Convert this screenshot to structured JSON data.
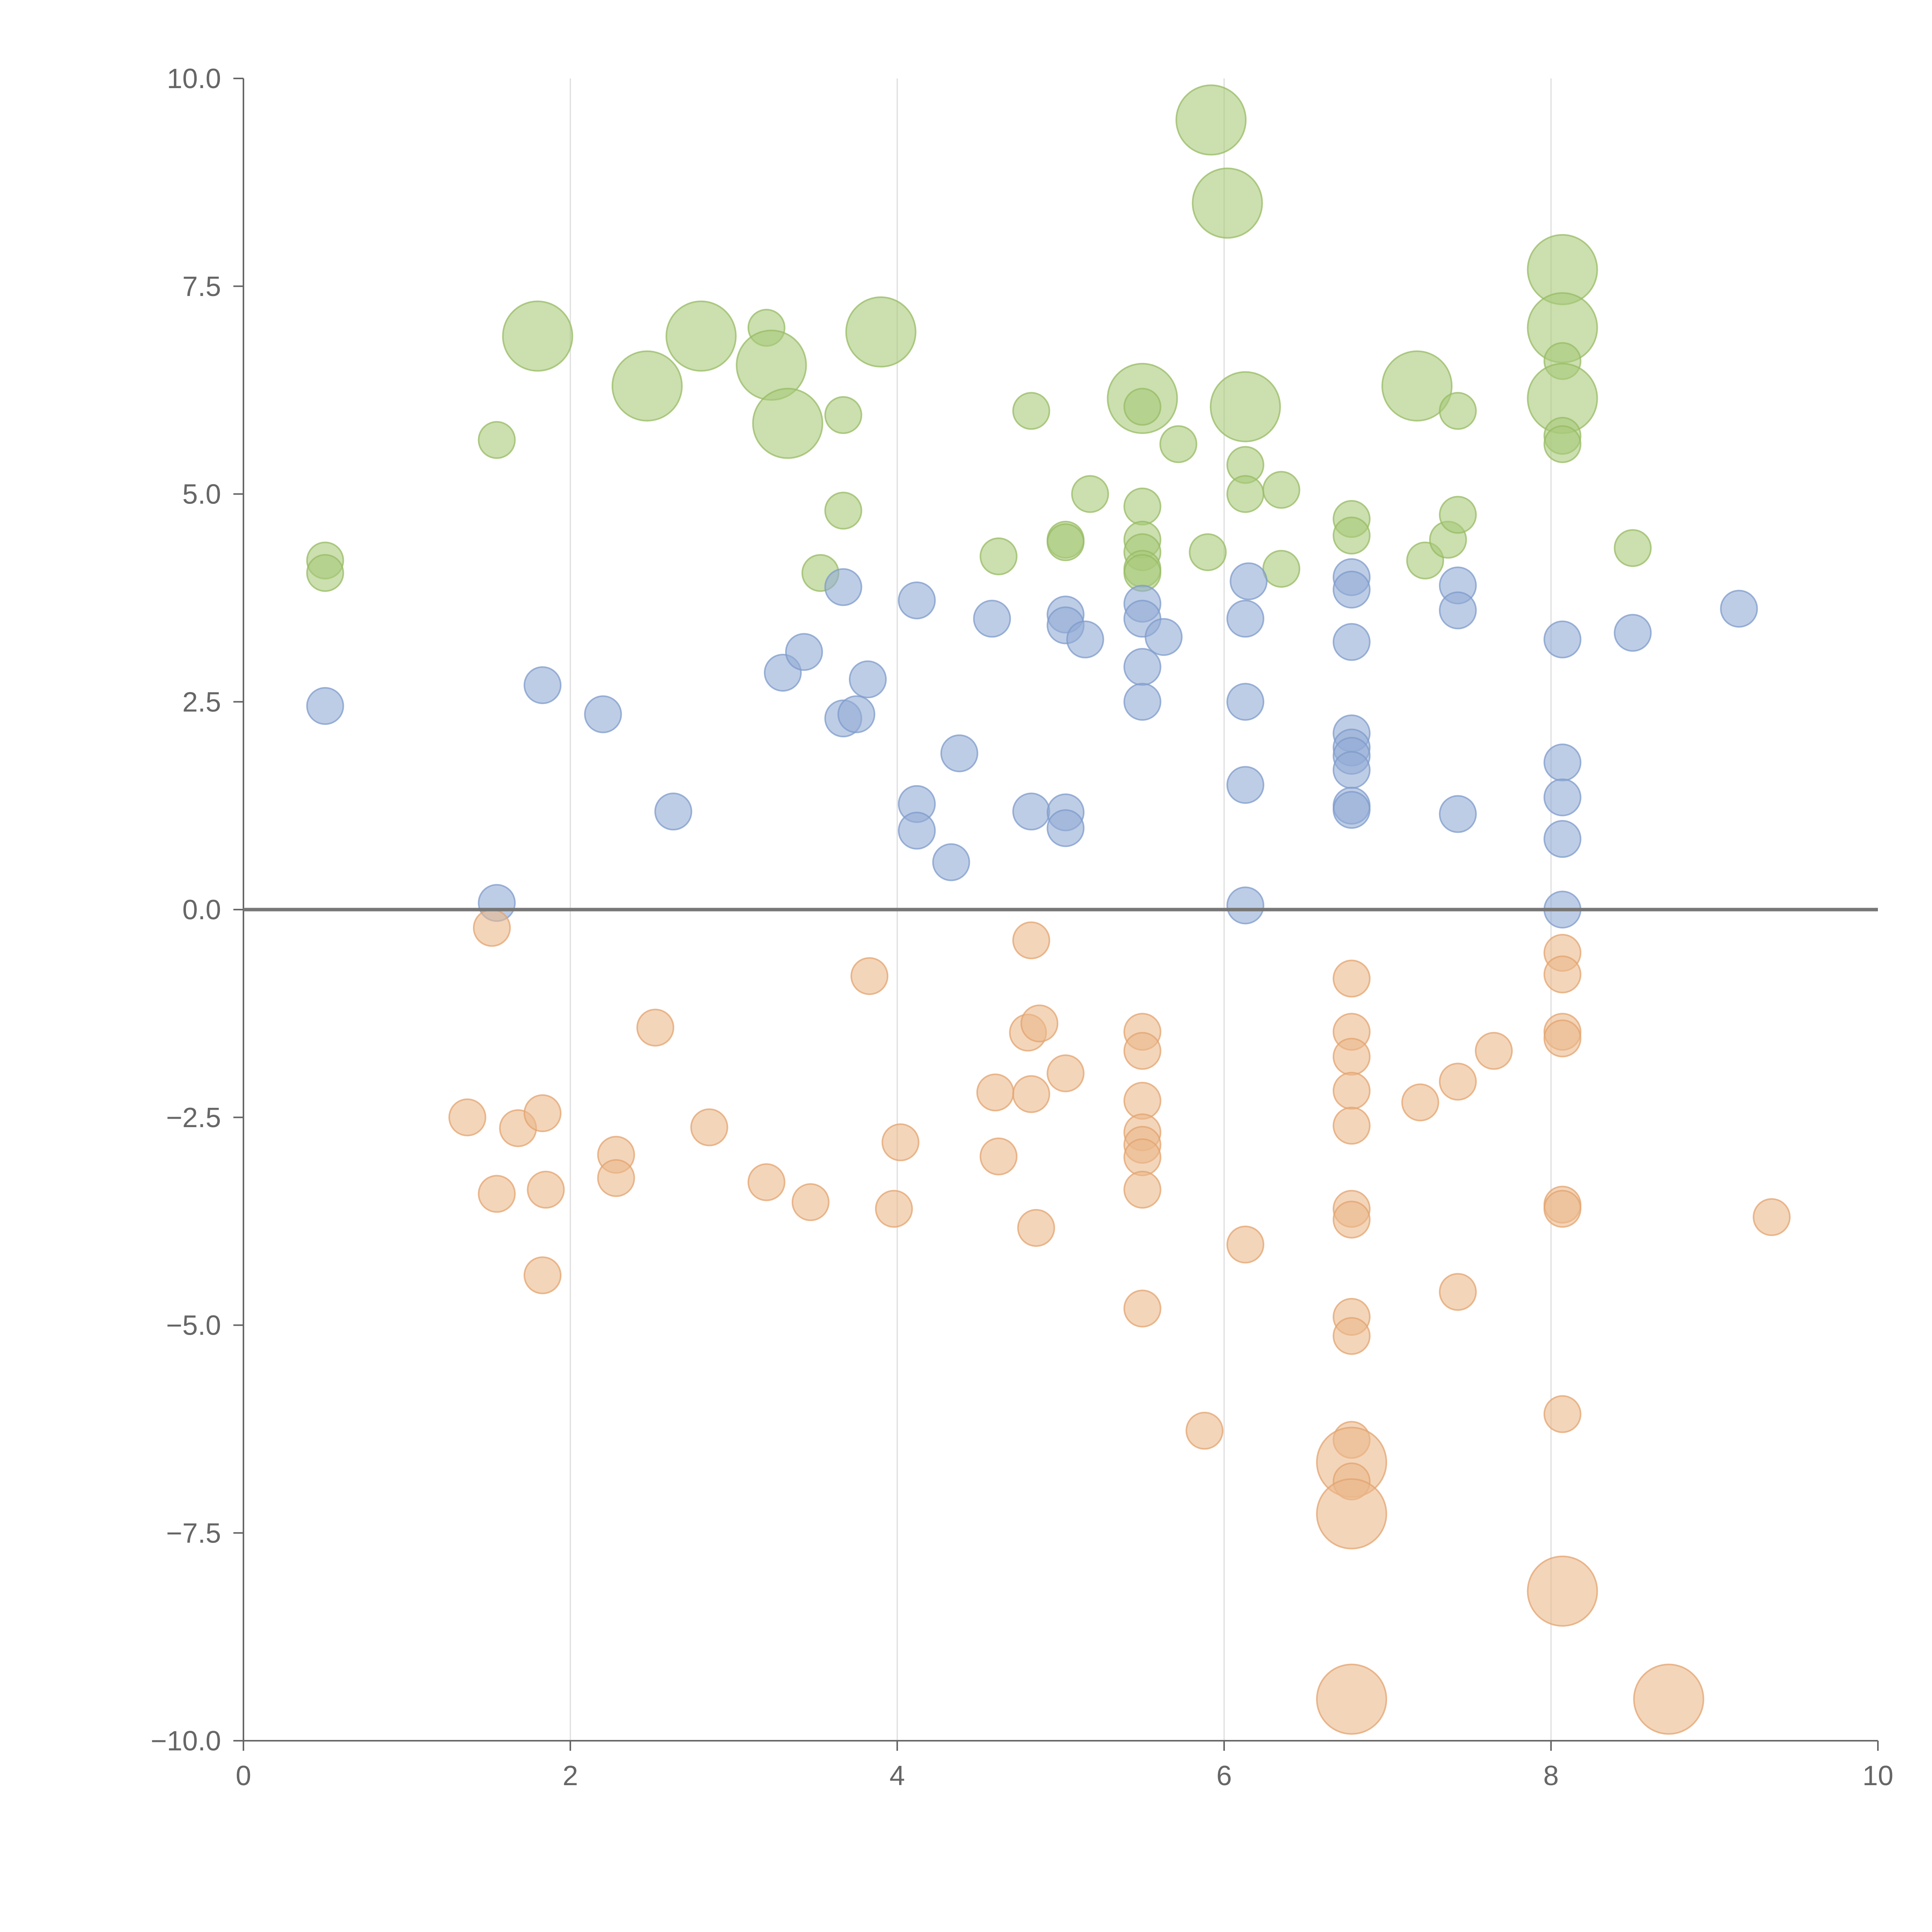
{
  "chart_data": {
    "type": "scatter",
    "title": "",
    "xlabel": "",
    "ylabel": "",
    "xlim": [
      0,
      10
    ],
    "ylim": [
      -10,
      10
    ],
    "grid": "vertical",
    "zero_line": true,
    "x_ticks": [
      0,
      2,
      4,
      6,
      8,
      10
    ],
    "x_tick_labels": [
      "0",
      "2",
      "4",
      "6",
      "8",
      "10"
    ],
    "y_ticks": [
      10,
      7.5,
      5,
      2.5,
      0,
      -2.5,
      -5,
      -7.5,
      -10
    ],
    "y_tick_labels": [
      "10.0",
      "7.5",
      "5.0",
      "2.5",
      "0.0",
      "−2.5",
      "−5.0",
      "−7.5",
      "−10.0"
    ],
    "size_legend": "none",
    "series": [
      {
        "name": "green",
        "color": "#a9c97a",
        "stroke": "#97bb63",
        "points": [
          [
            0.5,
            4.2,
            1
          ],
          [
            0.5,
            4.05,
            1
          ],
          [
            1.55,
            5.65,
            1
          ],
          [
            1.8,
            6.9,
            3
          ],
          [
            2.47,
            6.3,
            3
          ],
          [
            2.8,
            6.9,
            3
          ],
          [
            3.2,
            7.0,
            1
          ],
          [
            3.23,
            6.55,
            3
          ],
          [
            3.33,
            5.85,
            3
          ],
          [
            3.53,
            4.05,
            1
          ],
          [
            3.67,
            5.95,
            1
          ],
          [
            3.67,
            4.8,
            1
          ],
          [
            3.9,
            6.95,
            3
          ],
          [
            4.62,
            4.25,
            1
          ],
          [
            4.82,
            6.0,
            1
          ],
          [
            5.03,
            4.45,
            1
          ],
          [
            5.03,
            4.42,
            1
          ],
          [
            5.18,
            5.0,
            1
          ],
          [
            5.5,
            4.85,
            1
          ],
          [
            5.5,
            4.45,
            1
          ],
          [
            5.5,
            4.3,
            1
          ],
          [
            5.5,
            4.1,
            1
          ],
          [
            5.5,
            4.05,
            1
          ],
          [
            5.5,
            6.15,
            3
          ],
          [
            5.5,
            6.05,
            1
          ],
          [
            5.72,
            5.6,
            1
          ],
          [
            5.9,
            4.3,
            1
          ],
          [
            5.92,
            9.5,
            3
          ],
          [
            6.02,
            8.5,
            3
          ],
          [
            6.13,
            5.35,
            1
          ],
          [
            6.13,
            5.0,
            1
          ],
          [
            6.13,
            6.05,
            3
          ],
          [
            6.35,
            5.05,
            1
          ],
          [
            6.35,
            4.1,
            1
          ],
          [
            6.78,
            4.7,
            1
          ],
          [
            6.78,
            4.5,
            1
          ],
          [
            7.18,
            6.3,
            3
          ],
          [
            7.23,
            4.2,
            1
          ],
          [
            7.37,
            4.45,
            1
          ],
          [
            7.43,
            6.0,
            1
          ],
          [
            7.43,
            4.75,
            1
          ],
          [
            8.07,
            7.7,
            3
          ],
          [
            8.07,
            7.0,
            3
          ],
          [
            8.07,
            6.6,
            1
          ],
          [
            8.07,
            6.15,
            3
          ],
          [
            8.07,
            5.7,
            1
          ],
          [
            8.07,
            5.6,
            1
          ],
          [
            8.5,
            4.35,
            1
          ]
        ]
      },
      {
        "name": "blue",
        "color": "#92acd6",
        "stroke": "#7d9bcb",
        "points": [
          [
            0.5,
            2.45,
            1
          ],
          [
            1.55,
            0.08,
            1
          ],
          [
            1.83,
            2.7,
            1
          ],
          [
            2.2,
            2.35,
            1
          ],
          [
            2.63,
            1.18,
            1
          ],
          [
            3.3,
            2.85,
            1
          ],
          [
            3.43,
            3.1,
            1
          ],
          [
            3.67,
            3.88,
            1
          ],
          [
            3.67,
            2.3,
            1
          ],
          [
            3.75,
            2.35,
            1
          ],
          [
            3.82,
            2.77,
            1
          ],
          [
            4.12,
            3.72,
            1
          ],
          [
            4.12,
            1.27,
            1
          ],
          [
            4.12,
            0.95,
            1
          ],
          [
            4.33,
            0.57,
            1
          ],
          [
            4.38,
            1.88,
            1
          ],
          [
            4.58,
            3.5,
            1
          ],
          [
            4.82,
            1.18,
            1
          ],
          [
            5.03,
            3.55,
            1
          ],
          [
            5.03,
            3.42,
            1
          ],
          [
            5.03,
            1.17,
            1
          ],
          [
            5.03,
            0.98,
            1
          ],
          [
            5.15,
            3.25,
            1
          ],
          [
            5.5,
            3.68,
            1
          ],
          [
            5.5,
            3.5,
            1
          ],
          [
            5.5,
            2.92,
            1
          ],
          [
            5.5,
            2.5,
            1
          ],
          [
            5.63,
            3.28,
            1
          ],
          [
            6.13,
            3.5,
            1
          ],
          [
            6.13,
            2.5,
            1
          ],
          [
            6.13,
            1.5,
            1
          ],
          [
            6.13,
            0.05,
            1
          ],
          [
            6.15,
            3.95,
            1
          ],
          [
            6.78,
            4.0,
            1
          ],
          [
            6.78,
            3.85,
            1
          ],
          [
            6.78,
            3.22,
            1
          ],
          [
            6.78,
            2.12,
            1
          ],
          [
            6.78,
            1.95,
            1
          ],
          [
            6.78,
            1.85,
            1
          ],
          [
            6.78,
            1.68,
            1
          ],
          [
            6.78,
            1.25,
            1
          ],
          [
            6.78,
            1.2,
            1
          ],
          [
            7.43,
            3.9,
            1
          ],
          [
            7.43,
            3.6,
            1
          ],
          [
            7.43,
            1.15,
            1
          ],
          [
            8.07,
            3.25,
            1
          ],
          [
            8.07,
            1.77,
            1
          ],
          [
            8.07,
            1.35,
            1
          ],
          [
            8.07,
            0.85,
            1
          ],
          [
            8.07,
            0.0,
            1
          ],
          [
            8.5,
            3.33,
            1
          ],
          [
            9.15,
            3.62,
            1
          ]
        ]
      },
      {
        "name": "orange",
        "color": "#ebb98c",
        "stroke": "#e3a36e",
        "points": [
          [
            1.52,
            -0.22,
            1
          ],
          [
            1.37,
            -2.5,
            1
          ],
          [
            1.55,
            -3.42,
            1
          ],
          [
            1.68,
            -2.63,
            1
          ],
          [
            1.83,
            -2.45,
            1
          ],
          [
            1.85,
            -3.37,
            1
          ],
          [
            1.83,
            -4.4,
            1
          ],
          [
            2.28,
            -2.95,
            1
          ],
          [
            2.28,
            -3.23,
            1
          ],
          [
            2.52,
            -1.42,
            1
          ],
          [
            2.85,
            -2.62,
            1
          ],
          [
            3.2,
            -3.28,
            1
          ],
          [
            3.47,
            -3.52,
            1
          ],
          [
            3.83,
            -0.8,
            1
          ],
          [
            3.98,
            -3.6,
            1
          ],
          [
            4.02,
            -2.8,
            1
          ],
          [
            4.6,
            -2.2,
            1
          ],
          [
            4.62,
            -2.97,
            1
          ],
          [
            4.8,
            -1.48,
            1
          ],
          [
            4.82,
            -0.37,
            1
          ],
          [
            4.82,
            -2.22,
            1
          ],
          [
            4.87,
            -1.37,
            1
          ],
          [
            4.85,
            -3.83,
            1
          ],
          [
            5.03,
            -1.97,
            1
          ],
          [
            5.5,
            -1.47,
            1
          ],
          [
            5.5,
            -1.7,
            1
          ],
          [
            5.5,
            -2.3,
            1
          ],
          [
            5.5,
            -2.68,
            1
          ],
          [
            5.5,
            -2.83,
            1
          ],
          [
            5.5,
            -2.98,
            1
          ],
          [
            5.5,
            -3.37,
            1
          ],
          [
            5.5,
            -4.8,
            1
          ],
          [
            5.88,
            -6.27,
            1
          ],
          [
            6.13,
            -4.03,
            1
          ],
          [
            6.78,
            -0.83,
            1
          ],
          [
            6.78,
            -1.47,
            1
          ],
          [
            6.78,
            -1.77,
            1
          ],
          [
            6.78,
            -2.18,
            1
          ],
          [
            6.78,
            -2.6,
            1
          ],
          [
            6.78,
            -3.6,
            1
          ],
          [
            6.78,
            -3.73,
            1
          ],
          [
            6.78,
            -4.9,
            1
          ],
          [
            6.78,
            -5.13,
            1
          ],
          [
            6.78,
            -6.38,
            1
          ],
          [
            6.78,
            -6.65,
            3
          ],
          [
            6.78,
            -6.88,
            1
          ],
          [
            6.78,
            -7.27,
            3
          ],
          [
            6.78,
            -9.5,
            3
          ],
          [
            7.2,
            -2.32,
            1
          ],
          [
            7.43,
            -2.07,
            1
          ],
          [
            7.43,
            -4.6,
            1
          ],
          [
            7.65,
            -1.7,
            1
          ],
          [
            8.07,
            -0.52,
            1
          ],
          [
            8.07,
            -0.78,
            1
          ],
          [
            8.07,
            -1.47,
            1
          ],
          [
            8.07,
            -1.55,
            1
          ],
          [
            8.07,
            -3.55,
            1
          ],
          [
            8.07,
            -3.6,
            1
          ],
          [
            8.07,
            -6.07,
            1
          ],
          [
            8.07,
            -8.2,
            3
          ],
          [
            8.72,
            -9.5,
            3
          ],
          [
            9.35,
            -3.7,
            1
          ]
        ]
      }
    ]
  }
}
